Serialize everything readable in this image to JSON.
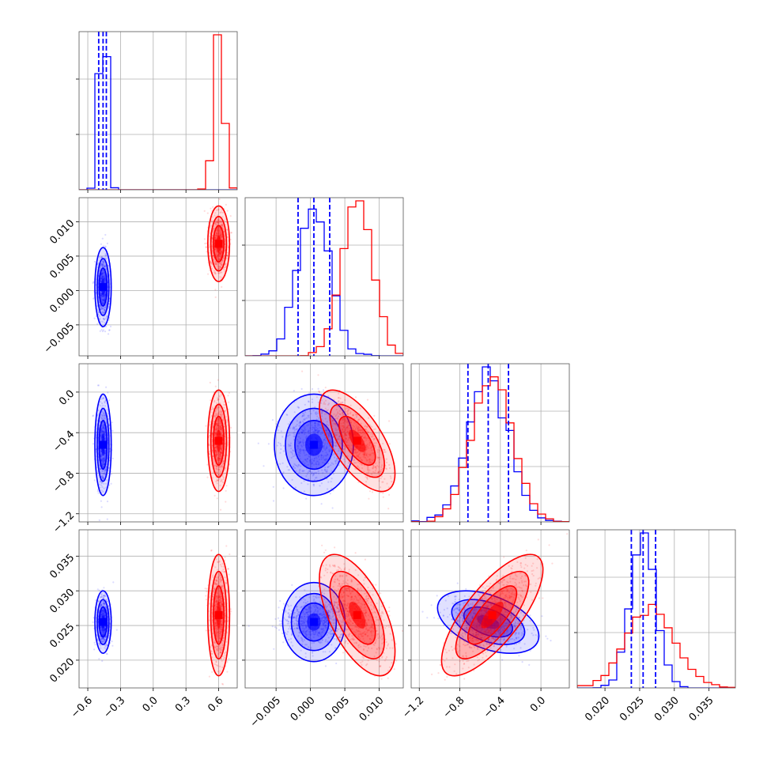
{
  "colors": {
    "series_a": "#0000ff",
    "series_b": "#ff0000",
    "grid": "#b0b0b0",
    "frame": "#555555"
  },
  "chart_data": {
    "type": "corner",
    "title": "",
    "grid": true,
    "parameters": [
      {
        "range": [
          -0.68,
          0.77
        ],
        "ticks": [
          -0.6,
          -0.3,
          0.0,
          0.3,
          0.6
        ],
        "tick_labels": [
          "−0.6",
          "−0.3",
          "0.0",
          "0.3",
          "0.6"
        ]
      },
      {
        "range": [
          -0.0095,
          0.0135
        ],
        "ticks": [
          -0.005,
          0.0,
          0.005,
          0.01
        ],
        "tick_labels": [
          "−0.005",
          "0.000",
          "0.005",
          "0.010"
        ]
      },
      {
        "range": [
          -1.28,
          0.28
        ],
        "ticks": [
          -1.2,
          -0.8,
          -0.4,
          0.0
        ],
        "tick_labels": [
          "−1.2",
          "−0.8",
          "−0.4",
          "0.0"
        ]
      },
      {
        "range": [
          0.016,
          0.0388
        ],
        "ticks": [
          0.02,
          0.025,
          0.03,
          0.035
        ],
        "tick_labels": [
          "0.020",
          "0.025",
          "0.030",
          "0.035"
        ]
      }
    ],
    "series": [
      {
        "color": "#0000ff",
        "mean": [
          -0.46,
          0.0005,
          -0.52,
          0.0255
        ],
        "sd": [
          0.03,
          0.0023,
          0.2,
          0.0018
        ],
        "corr": {
          "1-2": 0.0,
          "1-3": 0.0,
          "0-1": 0.0,
          "0-2": 0.0,
          "0-3": 0.0,
          "2-3": -0.45
        },
        "quantiles": [
          [
            -0.5,
            -0.46,
            -0.43
          ],
          [
            -0.0018,
            0.0005,
            0.0028
          ],
          [
            -0.72,
            -0.52,
            -0.32
          ],
          [
            0.0238,
            0.0255,
            0.0273
          ]
        ]
      },
      {
        "color": "#ff0000",
        "mean": [
          0.6,
          0.0068,
          -0.48,
          0.0265
        ],
        "sd": [
          0.04,
          0.0022,
          0.2,
          0.0035
        ],
        "corr": {
          "1-2": -0.65,
          "1-3": -0.6,
          "0-1": 0.0,
          "0-2": 0.0,
          "0-3": 0.0,
          "2-3": 0.75
        }
      }
    ]
  }
}
